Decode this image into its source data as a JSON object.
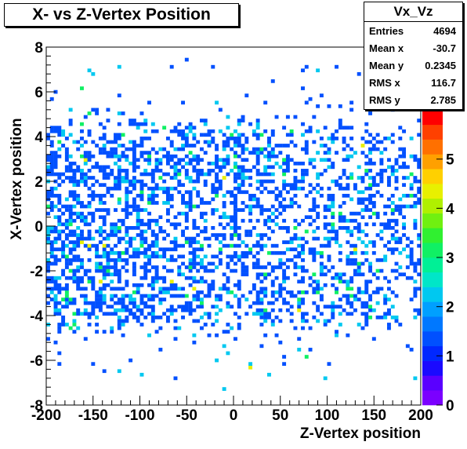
{
  "chart_data": {
    "type": "heatmap",
    "title": "X- vs Z-Vertex Position",
    "xlabel": "Z-Vertex position",
    "ylabel": "X-Vertex position",
    "xlim": [
      -200,
      200
    ],
    "ylim": [
      -8,
      8
    ],
    "x_ticks": [
      "-200",
      "-150",
      "-100",
      "-50",
      "0",
      "50",
      "100",
      "150",
      "200"
    ],
    "y_ticks": [
      "-8",
      "-6",
      "-4",
      "-2",
      "0",
      "2",
      "4",
      "6",
      "8"
    ],
    "bins_x": 100,
    "bins_y": 100,
    "colorbar": {
      "zlim": [
        0,
        6
      ],
      "ticks": [
        "0",
        "1",
        "2",
        "3",
        "4",
        "5"
      ],
      "palette": "rainbow"
    },
    "density_profile": {
      "y_values": [
        -8,
        -6,
        -5,
        -4.5,
        -4,
        -3,
        -2,
        0,
        2,
        3,
        4,
        4.5,
        5,
        6,
        8
      ],
      "occupancy": [
        0.004,
        0.02,
        0.07,
        0.2,
        0.38,
        0.5,
        0.52,
        0.45,
        0.52,
        0.5,
        0.38,
        0.18,
        0.06,
        0.02,
        0.004
      ]
    },
    "stats": {
      "name": "Vx_Vz",
      "entries": "4694",
      "mean_x": "-30.7",
      "mean_y": "0.2345",
      "rms_x": "116.7",
      "rms_y": "2.785"
    }
  },
  "labels": {
    "entries": "Entries",
    "mean_x": "Mean x",
    "mean_y": "Mean y",
    "rms_x": "RMS x",
    "rms_y": "RMS y"
  }
}
